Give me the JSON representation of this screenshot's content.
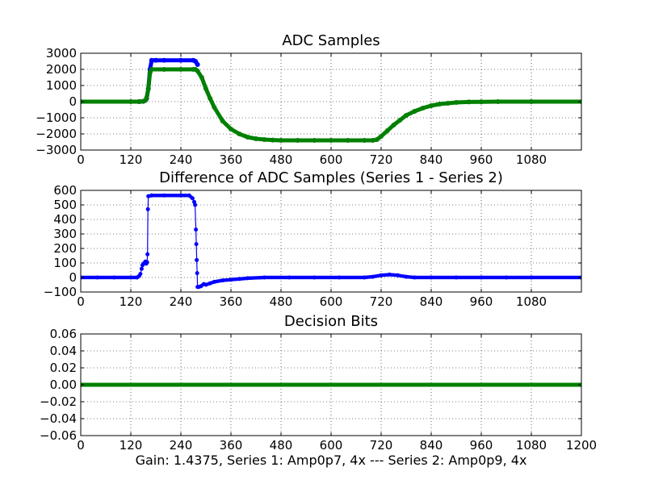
{
  "figure": {
    "footer_label": "Gain: 1.4375, Series 1: Amp0p7, 4x --- Series 2: Amp0p9, 4x"
  },
  "chart_data": [
    {
      "type": "scatter",
      "title": "ADC Samples",
      "xlabel": "",
      "ylabel": "",
      "xlim": [
        0,
        1200
      ],
      "ylim": [
        -3000,
        3000
      ],
      "grid": true,
      "x_ticks": [
        "0",
        "120",
        "240",
        "360",
        "480",
        "600",
        "720",
        "840",
        "960",
        "1080"
      ],
      "y_ticks": [
        "3000",
        "2000",
        "1000",
        "0",
        "−1000",
        "−2000",
        "−3000"
      ],
      "series": [
        {
          "color": "#0000ff",
          "style": "markers",
          "points": [
            [
              0,
              0
            ],
            [
              140,
              0
            ],
            [
              150,
              20
            ],
            [
              155,
              80
            ],
            [
              158,
              200
            ],
            [
              162,
              800
            ],
            [
              166,
              2000
            ],
            [
              170,
              2560
            ],
            [
              180,
              2560
            ],
            [
              200,
              2560
            ],
            [
              240,
              2560
            ],
            [
              270,
              2560
            ],
            [
              275,
              2500
            ],
            [
              280,
              2300
            ]
          ]
        },
        {
          "color": "#008000",
          "style": "markers",
          "points": [
            [
              0,
              0
            ],
            [
              120,
              0
            ],
            [
              140,
              0
            ],
            [
              150,
              20
            ],
            [
              155,
              80
            ],
            [
              158,
              250
            ],
            [
              162,
              800
            ],
            [
              166,
              1800
            ],
            [
              170,
              2000
            ],
            [
              200,
              2000
            ],
            [
              240,
              2000
            ],
            [
              270,
              2000
            ],
            [
              275,
              2000
            ],
            [
              280,
              1900
            ],
            [
              290,
              1500
            ],
            [
              300,
              800
            ],
            [
              310,
              200
            ],
            [
              320,
              -350
            ],
            [
              340,
              -1200
            ],
            [
              360,
              -1700
            ],
            [
              380,
              -2000
            ],
            [
              400,
              -2200
            ],
            [
              420,
              -2300
            ],
            [
              440,
              -2350
            ],
            [
              460,
              -2380
            ],
            [
              480,
              -2400
            ],
            [
              520,
              -2400
            ],
            [
              560,
              -2400
            ],
            [
              600,
              -2400
            ],
            [
              640,
              -2400
            ],
            [
              680,
              -2400
            ],
            [
              700,
              -2400
            ],
            [
              710,
              -2350
            ],
            [
              720,
              -2150
            ],
            [
              735,
              -1800
            ],
            [
              750,
              -1450
            ],
            [
              765,
              -1150
            ],
            [
              780,
              -850
            ],
            [
              800,
              -600
            ],
            [
              820,
              -400
            ],
            [
              840,
              -250
            ],
            [
              860,
              -150
            ],
            [
              880,
              -100
            ],
            [
              900,
              -50
            ],
            [
              930,
              -20
            ],
            [
              960,
              -10
            ],
            [
              1000,
              0
            ],
            [
              1080,
              0
            ],
            [
              1200,
              0
            ]
          ]
        }
      ]
    },
    {
      "type": "scatter",
      "title": "Difference of ADC Samples (Series 1 - Series 2)",
      "xlabel": "",
      "ylabel": "",
      "xlim": [
        0,
        1200
      ],
      "ylim": [
        -100,
        600
      ],
      "grid": true,
      "x_ticks": [
        "0",
        "120",
        "240",
        "360",
        "480",
        "600",
        "720",
        "840",
        "960",
        "1080"
      ],
      "y_ticks": [
        "600",
        "500",
        "400",
        "300",
        "200",
        "100",
        "0",
        "−100"
      ],
      "series": [
        {
          "color": "#0000ff",
          "style": "line+markers",
          "points": [
            [
              0,
              0
            ],
            [
              40,
              0
            ],
            [
              80,
              0
            ],
            [
              120,
              0
            ],
            [
              135,
              0
            ],
            [
              140,
              10
            ],
            [
              143,
              25
            ],
            [
              146,
              60
            ],
            [
              148,
              85
            ],
            [
              150,
              95
            ],
            [
              153,
              100
            ],
            [
              155,
              110
            ],
            [
              157,
              95
            ],
            [
              159,
              105
            ],
            [
              160,
              160
            ],
            [
              161,
              470
            ],
            [
              162,
              560
            ],
            [
              170,
              565
            ],
            [
              200,
              565
            ],
            [
              240,
              565
            ],
            [
              260,
              565
            ],
            [
              268,
              545
            ],
            [
              272,
              520
            ],
            [
              274,
              500
            ],
            [
              276,
              330
            ],
            [
              277,
              230
            ],
            [
              278,
              120
            ],
            [
              279,
              30
            ],
            [
              280,
              -65
            ],
            [
              283,
              -65
            ],
            [
              288,
              -60
            ],
            [
              295,
              -45
            ],
            [
              300,
              -50
            ],
            [
              310,
              -40
            ],
            [
              320,
              -30
            ],
            [
              340,
              -20
            ],
            [
              360,
              -15
            ],
            [
              380,
              -10
            ],
            [
              400,
              -5
            ],
            [
              440,
              0
            ],
            [
              500,
              0
            ],
            [
              560,
              0
            ],
            [
              620,
              0
            ],
            [
              680,
              0
            ],
            [
              700,
              5
            ],
            [
              720,
              15
            ],
            [
              740,
              20
            ],
            [
              760,
              15
            ],
            [
              780,
              5
            ],
            [
              800,
              0
            ],
            [
              840,
              0
            ],
            [
              900,
              0
            ],
            [
              960,
              0
            ],
            [
              1020,
              0
            ],
            [
              1080,
              0
            ],
            [
              1200,
              0
            ]
          ]
        }
      ]
    },
    {
      "type": "scatter",
      "title": "Decision Bits",
      "xlabel": "Gain: 1.4375, Series 1: Amp0p7, 4x --- Series 2: Amp0p9, 4x",
      "ylabel": "",
      "xlim": [
        0,
        1200
      ],
      "ylim": [
        -0.06,
        0.06
      ],
      "grid": true,
      "x_ticks": [
        "0",
        "120",
        "240",
        "360",
        "480",
        "600",
        "720",
        "840",
        "960",
        "1080",
        "1200"
      ],
      "y_ticks": [
        "0.06",
        "0.04",
        "0.02",
        "0.00",
        "−0.02",
        "−0.04",
        "−0.06"
      ],
      "series": [
        {
          "color": "#008000",
          "style": "markers",
          "points": [
            [
              0,
              0
            ],
            [
              1200,
              0
            ]
          ]
        }
      ]
    }
  ]
}
